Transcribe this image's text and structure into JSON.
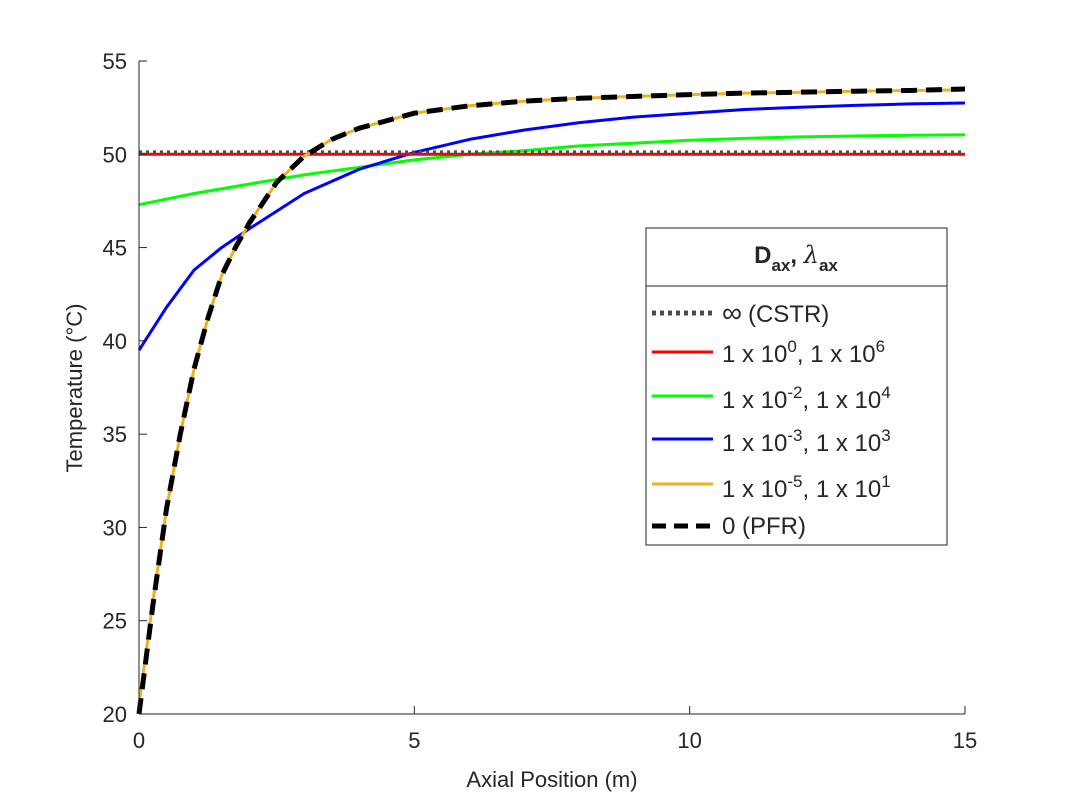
{
  "chart_data": {
    "type": "line",
    "title": "",
    "xlabel": "Axial Position (m)",
    "ylabel": "Temperature (°C)",
    "xlim": [
      0,
      15
    ],
    "ylim": [
      20,
      55
    ],
    "xticks": [
      0,
      5,
      10,
      15
    ],
    "yticks": [
      20,
      25,
      30,
      35,
      40,
      45,
      50,
      55
    ],
    "grid": false,
    "legend": {
      "placement": "center-right",
      "title_main": "D",
      "title_main_sub": "ax",
      "title_sep": ",  ",
      "title_second": "λ",
      "title_second_sub": "ax"
    },
    "series": [
      {
        "name": "∞ (CSTR)",
        "label_parts": {
          "text": "(CSTR)",
          "symbol": "∞"
        },
        "color": "#4d4d4d",
        "style": "dotted",
        "x": [
          0,
          15
        ],
        "y": [
          50.1,
          50.1
        ]
      },
      {
        "name": "1 x 10^0, 1 x 10^6",
        "label_parts": {
          "a": "1 x 10",
          "ae": "0",
          "b": ", 1 x 10",
          "be": "6"
        },
        "color": "#ff0000",
        "style": "solid",
        "x": [
          0,
          15
        ],
        "y": [
          50.0,
          50.0
        ]
      },
      {
        "name": "1 x 10^-2, 1 x 10^4",
        "label_parts": {
          "a": "1 x 10",
          "ae": "-2",
          "b": ", 1 x 10",
          "be": "4"
        },
        "color": "#00ff00",
        "style": "solid",
        "x": [
          0,
          1,
          2,
          3,
          4,
          5,
          6,
          7,
          8,
          9,
          10,
          11,
          12,
          13,
          14,
          15
        ],
        "y": [
          47.3,
          47.9,
          48.4,
          48.9,
          49.3,
          49.7,
          50.0,
          50.2,
          50.45,
          50.6,
          50.75,
          50.85,
          50.93,
          50.98,
          51.02,
          51.05
        ]
      },
      {
        "name": "1 x 10^-3, 1 x 10^3",
        "label_parts": {
          "a": "1 x 10",
          "ae": "-3",
          "b": ", 1 x 10",
          "be": "3"
        },
        "color": "#0000ff",
        "style": "solid",
        "x": [
          0,
          0.5,
          1,
          1.5,
          2,
          3,
          4,
          5,
          6,
          7,
          8,
          9,
          10,
          11,
          12,
          13,
          14,
          15
        ],
        "y": [
          39.5,
          41.8,
          43.8,
          45.0,
          46.0,
          47.9,
          49.2,
          50.1,
          50.8,
          51.3,
          51.7,
          52.0,
          52.2,
          52.4,
          52.52,
          52.62,
          52.7,
          52.75
        ]
      },
      {
        "name": "1 x 10^-5, 1 x 10^1",
        "label_parts": {
          "a": "1 x 10",
          "ae": "-5",
          "b": ", 1 x 10",
          "be": "1"
        },
        "color": "#edb120",
        "style": "solid",
        "x": [
          0,
          0.25,
          0.5,
          0.75,
          1,
          1.25,
          1.5,
          1.75,
          2,
          2.5,
          3,
          3.5,
          4,
          5,
          6,
          7,
          8,
          9,
          10,
          11,
          12,
          13,
          14,
          15
        ],
        "y": [
          20.5,
          26.0,
          31.0,
          35.0,
          38.5,
          41.2,
          43.5,
          45.0,
          46.3,
          48.5,
          49.9,
          50.8,
          51.4,
          52.2,
          52.6,
          52.85,
          53.0,
          53.1,
          53.2,
          53.28,
          53.33,
          53.38,
          53.42,
          53.45
        ]
      },
      {
        "name": "0 (PFR)",
        "label_parts": {
          "text": "0 (PFR)"
        },
        "color": "#000000",
        "style": "dashed",
        "x": [
          0,
          0.25,
          0.5,
          0.75,
          1,
          1.25,
          1.5,
          1.75,
          2,
          2.5,
          3,
          3.5,
          4,
          5,
          6,
          7,
          8,
          9,
          10,
          11,
          12,
          13,
          14,
          15
        ],
        "y": [
          20.0,
          25.8,
          31.0,
          35.0,
          38.5,
          41.2,
          43.5,
          45.0,
          46.3,
          48.5,
          49.9,
          50.8,
          51.4,
          52.2,
          52.6,
          52.85,
          53.0,
          53.1,
          53.2,
          53.28,
          53.33,
          53.38,
          53.42,
          53.5
        ]
      }
    ]
  }
}
